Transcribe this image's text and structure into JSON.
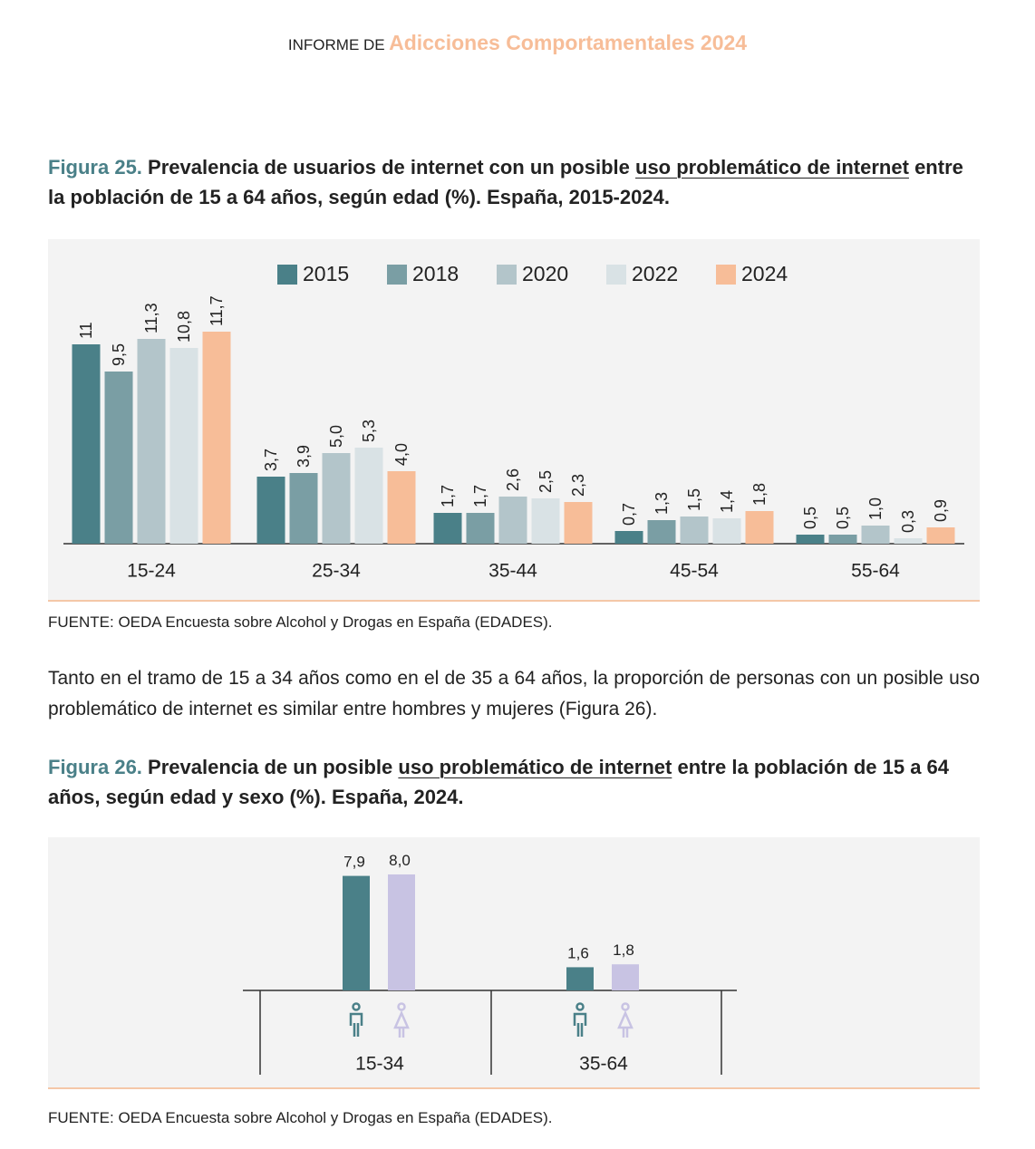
{
  "header": {
    "prefix": "INFORME DE",
    "title": "Adicciones Comportamentales 2024"
  },
  "paragraph": "Tanto en el tramo de 15 a 34 años como en el de 35 a 64 años, la proporción de personas con un posible uso problemático de internet es similar entre hombres y mujeres (Figura 26).",
  "chart_data": [
    {
      "type": "bar",
      "figure_label": "Figura 25.",
      "title_before": "Prevalencia de usuarios de internet con un posible",
      "title_link": "uso problemático de internet",
      "title_after": "entre la población de 15 a 64 años, según edad (%). España, 2015-2024.",
      "categories": [
        "15-24",
        "25-34",
        "35-44",
        "45-54",
        "55-64"
      ],
      "series": [
        {
          "name": "2015",
          "color": "#4a8088",
          "values": [
            11,
            3.7,
            1.7,
            0.7,
            0.5
          ],
          "value_labels": [
            "11",
            "3,7",
            "1,7",
            "0,7",
            "0,5"
          ]
        },
        {
          "name": "2018",
          "color": "#7a9ea4",
          "values": [
            9.5,
            3.9,
            1.7,
            1.3,
            0.5
          ],
          "value_labels": [
            "9,5",
            "3,9",
            "1,7",
            "1,3",
            "0,5"
          ]
        },
        {
          "name": "2020",
          "color": "#b3c5ca",
          "values": [
            11.3,
            5.0,
            2.6,
            1.5,
            1.0
          ],
          "value_labels": [
            "11,3",
            "5,0",
            "2,6",
            "1,5",
            "1,0"
          ]
        },
        {
          "name": "2022",
          "color": "#d9e2e5",
          "values": [
            10.8,
            5.3,
            2.5,
            1.4,
            0.3
          ],
          "value_labels": [
            "10,8",
            "5,3",
            "2,5",
            "1,4",
            "0,3"
          ]
        },
        {
          "name": "2024",
          "color": "#f7bd98",
          "values": [
            11.7,
            4.0,
            2.3,
            1.8,
            0.9
          ],
          "value_labels": [
            "11,7",
            "4,0",
            "2,3",
            "1,8",
            "0,9"
          ]
        }
      ],
      "ylim": [
        0,
        12
      ],
      "legend": "top",
      "value_label_rotation": true,
      "source": "FUENTE: OEDA Encuesta sobre Alcohol y Drogas en España (EDADES)."
    },
    {
      "type": "bar",
      "figure_label": "Figura 26.",
      "title_before": "Prevalencia de un posible",
      "title_link": "uso problemático de internet",
      "title_after": "entre la población de 15 a 64 años, según edad y sexo (%). España, 2024.",
      "categories": [
        "15-34",
        "35-64"
      ],
      "series": [
        {
          "color": "#4a8088",
          "values": [
            7.9,
            1.6
          ],
          "value_labels": [
            "7,9",
            "1,6"
          ]
        },
        {
          "color": "#c8c3e3",
          "values": [
            8.0,
            1.8
          ],
          "value_labels": [
            "8,0",
            "1,8"
          ]
        }
      ],
      "ylim": [
        0,
        8
      ],
      "value_label_rotation": false,
      "source": "FUENTE: OEDA Encuesta sobre Alcohol y Drogas en España (EDADES)."
    }
  ]
}
